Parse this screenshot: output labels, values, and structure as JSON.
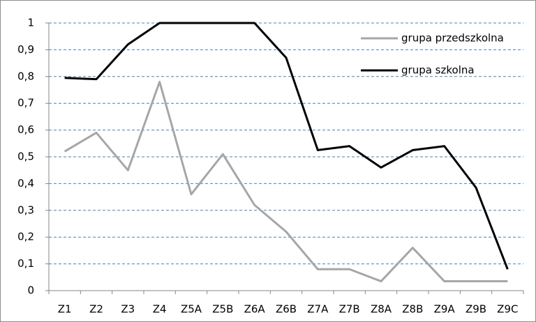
{
  "chart_data": {
    "type": "line",
    "categories": [
      "Z1",
      "Z2",
      "Z3",
      "Z4",
      "Z5A",
      "Z5B",
      "Z6A",
      "Z6B",
      "Z7A",
      "Z7B",
      "Z8A",
      "Z8B",
      "Z9A",
      "Z9B",
      "Z9C"
    ],
    "series": [
      {
        "name": "grupa przedszkolna",
        "color": "#a6a6a6",
        "values": [
          0.52,
          0.59,
          0.45,
          0.78,
          0.36,
          0.51,
          0.32,
          0.22,
          0.08,
          0.08,
          0.035,
          0.16,
          0.035,
          0.035,
          0.035
        ]
      },
      {
        "name": "grupa szkolna",
        "color": "#000000",
        "values": [
          0.795,
          0.79,
          0.92,
          1,
          1,
          1,
          1,
          0.87,
          0.525,
          0.54,
          0.46,
          0.525,
          0.54,
          0.385,
          0.08
        ]
      }
    ],
    "ylim": [
      0,
      1
    ],
    "yticks": [
      0,
      {
        "value": 0.1,
        "label": "0,1"
      },
      {
        "value": 0.2,
        "label": "0,2"
      },
      {
        "value": 0.3,
        "label": "0,3"
      },
      {
        "value": 0.4,
        "label": "0,4"
      },
      {
        "value": 0.5,
        "label": "0,5"
      },
      {
        "value": 0.6,
        "label": "0,6"
      },
      {
        "value": 0.7,
        "label": "0,7"
      },
      {
        "value": 0.8,
        "label": "0,8"
      },
      {
        "value": 0.9,
        "label": "0,9"
      },
      1
    ],
    "grid": true,
    "legend": "top-right"
  }
}
